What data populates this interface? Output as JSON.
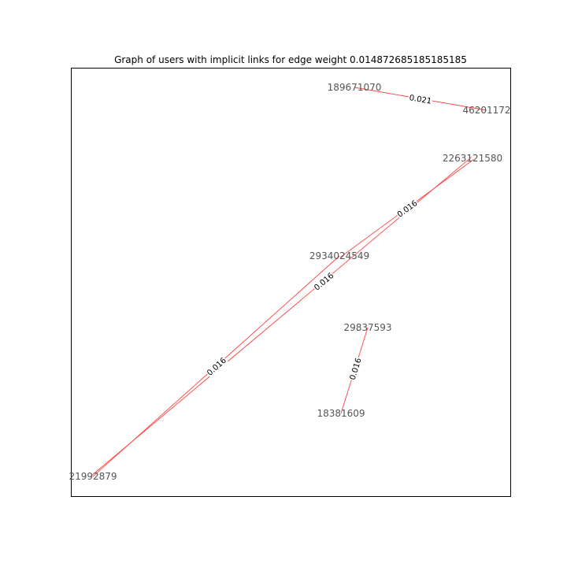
{
  "figure": {
    "title": "Graph of users with implicit links for edge weight 0.014872685185185185"
  },
  "graph": {
    "nodes": [
      {
        "id": "189671070",
        "label": "189671070"
      },
      {
        "id": "46201172",
        "label": "46201172"
      },
      {
        "id": "2263121580",
        "label": "2263121580"
      },
      {
        "id": "2934024549",
        "label": "2934024549"
      },
      {
        "id": "29837593",
        "label": "29837593"
      },
      {
        "id": "18381609",
        "label": "18381609"
      },
      {
        "id": "21992879",
        "label": "21992879"
      }
    ],
    "edges": [
      {
        "source": "189671070",
        "target": "46201172",
        "weight_label": "0.021"
      },
      {
        "source": "2263121580",
        "target": "2934024549",
        "weight_label": "0.016"
      },
      {
        "source": "2934024549",
        "target": "21992879",
        "weight_label": "0.016"
      },
      {
        "source": "2263121580",
        "target": "21992879",
        "weight_label": "0.016"
      },
      {
        "source": "29837593",
        "target": "18381609",
        "weight_label": "0.016"
      }
    ],
    "colors": {
      "edge": "#ff4040",
      "node_label": "#555555",
      "edge_label": "#000000",
      "frame": "#000000"
    }
  }
}
